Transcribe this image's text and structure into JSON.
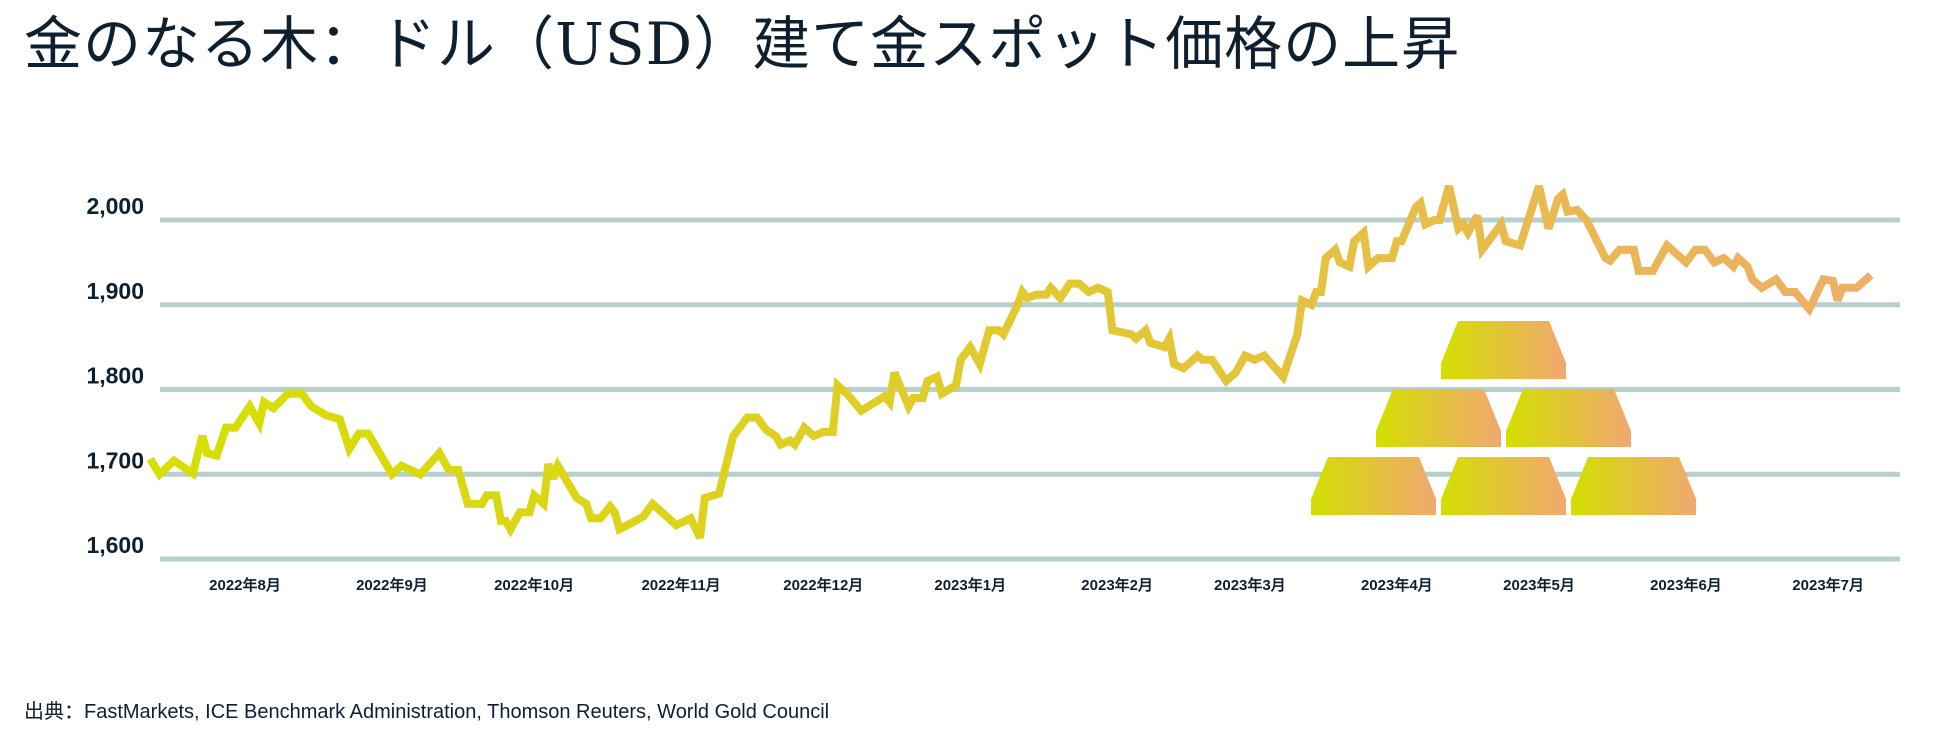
{
  "title": "金のなる木：ドル（USD）建て金スポット価格の上昇",
  "source": "出典：FastMarkets, ICE Benchmark Administration, Thomson Reuters, World Gold Council",
  "colors": {
    "line_start": "#d6e000",
    "line_mid": "#e4c43a",
    "line_end": "#efae68",
    "grid": "#b7d0cd",
    "text": "#0e2030",
    "bar_left": "#d4df00",
    "bar_right": "#f0a870"
  },
  "decoration": {
    "icon": "gold-bars-pyramid-icon",
    "bar_count": 6
  },
  "chart_data": {
    "type": "line",
    "title": "",
    "xlabel": "",
    "ylabel": "",
    "ylim": [
      1600,
      2000
    ],
    "grid": true,
    "yticks": [
      2000,
      1900,
      1800,
      1700,
      1600
    ],
    "ytick_labels": [
      "2,000",
      "1,900",
      "1,800",
      "1,700",
      "1,600"
    ],
    "xticks": [
      "2022-08-01",
      "2022-09-01",
      "2022-10-01",
      "2022-11-01",
      "2022-12-01",
      "2023-01-01",
      "2023-02-01",
      "2023-03-01",
      "2023-04-01",
      "2023-05-01",
      "2023-06-01",
      "2023-07-01"
    ],
    "xtick_labels": [
      "2022年8月",
      "2022年9月",
      "2022年10月",
      "2022年11月",
      "2022年12月",
      "2023年1月",
      "2023年2月",
      "2023年3月",
      "2023年4月",
      "2023年5月",
      "2023年6月",
      "2023年7月"
    ],
    "points": [
      [
        "2022-07-12",
        1718
      ],
      [
        "2022-07-14",
        1700
      ],
      [
        "2022-07-17",
        1716
      ],
      [
        "2022-07-21",
        1701
      ],
      [
        "2022-07-23",
        1745
      ],
      [
        "2022-07-24",
        1725
      ],
      [
        "2022-07-26",
        1722
      ],
      [
        "2022-07-28",
        1755
      ],
      [
        "2022-07-30",
        1755
      ],
      [
        "2022-08-02",
        1780
      ],
      [
        "2022-08-04",
        1760
      ],
      [
        "2022-08-05",
        1785
      ],
      [
        "2022-08-07",
        1778
      ],
      [
        "2022-08-10",
        1795
      ],
      [
        "2022-08-13",
        1795
      ],
      [
        "2022-08-15",
        1780
      ],
      [
        "2022-08-18",
        1770
      ],
      [
        "2022-08-21",
        1765
      ],
      [
        "2022-08-23",
        1730
      ],
      [
        "2022-08-25",
        1748
      ],
      [
        "2022-08-27",
        1748
      ],
      [
        "2022-09-01",
        1700
      ],
      [
        "2022-09-03",
        1710
      ],
      [
        "2022-09-07",
        1700
      ],
      [
        "2022-09-11",
        1725
      ],
      [
        "2022-09-13",
        1705
      ],
      [
        "2022-09-15",
        1705
      ],
      [
        "2022-09-17",
        1665
      ],
      [
        "2022-09-20",
        1665
      ],
      [
        "2022-09-21",
        1675
      ],
      [
        "2022-09-23",
        1675
      ],
      [
        "2022-09-24",
        1645
      ],
      [
        "2022-09-25",
        1645
      ],
      [
        "2022-09-26",
        1635
      ],
      [
        "2022-09-28",
        1655
      ],
      [
        "2022-09-30",
        1655
      ],
      [
        "2022-10-01",
        1675
      ],
      [
        "2022-10-03",
        1665
      ],
      [
        "2022-10-04",
        1712
      ],
      [
        "2022-10-05",
        1695
      ],
      [
        "2022-10-06",
        1710
      ],
      [
        "2022-10-10",
        1672
      ],
      [
        "2022-10-12",
        1665
      ],
      [
        "2022-10-13",
        1648
      ],
      [
        "2022-10-15",
        1648
      ],
      [
        "2022-10-17",
        1662
      ],
      [
        "2022-10-18",
        1655
      ],
      [
        "2022-10-19",
        1635
      ],
      [
        "2022-10-24",
        1650
      ],
      [
        "2022-10-26",
        1665
      ],
      [
        "2022-10-31",
        1640
      ],
      [
        "2022-11-03",
        1648
      ],
      [
        "2022-11-05",
        1625
      ],
      [
        "2022-11-06",
        1672
      ],
      [
        "2022-11-09",
        1677
      ],
      [
        "2022-11-12",
        1745
      ],
      [
        "2022-11-15",
        1767
      ],
      [
        "2022-11-17",
        1767
      ],
      [
        "2022-11-19",
        1752
      ],
      [
        "2022-11-21",
        1745
      ],
      [
        "2022-11-22",
        1735
      ],
      [
        "2022-11-24",
        1740
      ],
      [
        "2022-11-25",
        1735
      ],
      [
        "2022-11-27",
        1755
      ],
      [
        "2022-11-29",
        1745
      ],
      [
        "2022-12-01",
        1750
      ],
      [
        "2022-12-03",
        1750
      ],
      [
        "2022-12-04",
        1805
      ],
      [
        "2022-12-06",
        1795
      ],
      [
        "2022-12-09",
        1775
      ],
      [
        "2022-12-14",
        1792
      ],
      [
        "2022-12-15",
        1785
      ],
      [
        "2022-12-16",
        1820
      ],
      [
        "2022-12-19",
        1780
      ],
      [
        "2022-12-20",
        1790
      ],
      [
        "2022-12-22",
        1790
      ],
      [
        "2022-12-23",
        1810
      ],
      [
        "2022-12-25",
        1815
      ],
      [
        "2022-12-26",
        1795
      ],
      [
        "2022-12-29",
        1805
      ],
      [
        "2022-12-30",
        1835
      ],
      [
        "2023-01-01",
        1850
      ],
      [
        "2023-01-03",
        1830
      ],
      [
        "2023-01-05",
        1870
      ],
      [
        "2023-01-07",
        1870
      ],
      [
        "2023-01-08",
        1865
      ],
      [
        "2023-01-11",
        1900
      ],
      [
        "2023-01-12",
        1915
      ],
      [
        "2023-01-13",
        1908
      ],
      [
        "2023-01-15",
        1912
      ],
      [
        "2023-01-17",
        1912
      ],
      [
        "2023-01-18",
        1920
      ],
      [
        "2023-01-20",
        1908
      ],
      [
        "2023-01-22",
        1925
      ],
      [
        "2023-01-24",
        1925
      ],
      [
        "2023-01-26",
        1915
      ],
      [
        "2023-01-28",
        1920
      ],
      [
        "2023-01-30",
        1915
      ],
      [
        "2023-01-31",
        1870
      ],
      [
        "2023-02-04",
        1865
      ],
      [
        "2023-02-05",
        1860
      ],
      [
        "2023-02-07",
        1870
      ],
      [
        "2023-02-08",
        1855
      ],
      [
        "2023-02-11",
        1850
      ],
      [
        "2023-02-12",
        1860
      ],
      [
        "2023-02-13",
        1830
      ],
      [
        "2023-02-15",
        1825
      ],
      [
        "2023-02-18",
        1840
      ],
      [
        "2023-02-19",
        1835
      ],
      [
        "2023-02-21",
        1835
      ],
      [
        "2023-02-24",
        1810
      ],
      [
        "2023-02-26",
        1820
      ],
      [
        "2023-02-28",
        1840
      ],
      [
        "2023-03-02",
        1835
      ],
      [
        "2023-03-04",
        1840
      ],
      [
        "2023-03-08",
        1815
      ],
      [
        "2023-03-11",
        1865
      ],
      [
        "2023-03-12",
        1905
      ],
      [
        "2023-03-14",
        1900
      ],
      [
        "2023-03-15",
        1915
      ],
      [
        "2023-03-16",
        1915
      ],
      [
        "2023-03-17",
        1955
      ],
      [
        "2023-03-19",
        1965
      ],
      [
        "2023-03-20",
        1950
      ],
      [
        "2023-03-22",
        1945
      ],
      [
        "2023-03-23",
        1975
      ],
      [
        "2023-03-25",
        1985
      ],
      [
        "2023-03-26",
        1945
      ],
      [
        "2023-03-28",
        1955
      ],
      [
        "2023-03-31",
        1955
      ],
      [
        "2023-04-01",
        1975
      ],
      [
        "2023-04-02",
        1975
      ],
      [
        "2023-04-05",
        2015
      ],
      [
        "2023-04-06",
        2020
      ],
      [
        "2023-04-07",
        1995
      ],
      [
        "2023-04-09",
        2000
      ],
      [
        "2023-04-10",
        2000
      ],
      [
        "2023-04-12",
        2040
      ],
      [
        "2023-04-14",
        1990
      ],
      [
        "2023-04-15",
        1995
      ],
      [
        "2023-04-16",
        1985
      ],
      [
        "2023-04-18",
        2005
      ],
      [
        "2023-04-19",
        1965
      ],
      [
        "2023-04-23",
        1995
      ],
      [
        "2023-04-24",
        1975
      ],
      [
        "2023-04-27",
        1970
      ],
      [
        "2023-05-01",
        2040
      ],
      [
        "2023-05-03",
        1990
      ],
      [
        "2023-05-05",
        2025
      ],
      [
        "2023-05-06",
        2030
      ],
      [
        "2023-05-07",
        2010
      ],
      [
        "2023-05-09",
        2012
      ],
      [
        "2023-05-11",
        2000
      ],
      [
        "2023-05-15",
        1955
      ],
      [
        "2023-05-16",
        1952
      ],
      [
        "2023-05-18",
        1965
      ],
      [
        "2023-05-21",
        1965
      ],
      [
        "2023-05-22",
        1940
      ],
      [
        "2023-05-25",
        1940
      ],
      [
        "2023-05-28",
        1970
      ],
      [
        "2023-06-01",
        1950
      ],
      [
        "2023-06-03",
        1965
      ],
      [
        "2023-06-05",
        1965
      ],
      [
        "2023-06-07",
        1950
      ],
      [
        "2023-06-09",
        1955
      ],
      [
        "2023-06-11",
        1945
      ],
      [
        "2023-06-12",
        1955
      ],
      [
        "2023-06-14",
        1945
      ],
      [
        "2023-06-15",
        1930
      ],
      [
        "2023-06-17",
        1920
      ],
      [
        "2023-06-20",
        1930
      ],
      [
        "2023-06-22",
        1915
      ],
      [
        "2023-06-24",
        1915
      ],
      [
        "2023-06-27",
        1895
      ],
      [
        "2023-06-30",
        1930
      ],
      [
        "2023-07-02",
        1928
      ],
      [
        "2023-07-03",
        1905
      ],
      [
        "2023-07-04",
        1920
      ],
      [
        "2023-07-07",
        1920
      ],
      [
        "2023-07-10",
        1935
      ]
    ]
  }
}
